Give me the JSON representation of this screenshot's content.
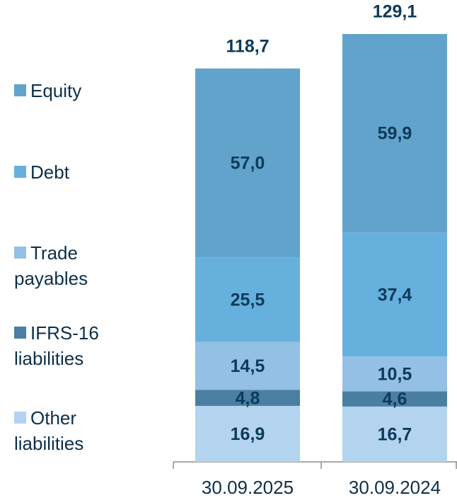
{
  "chart_data": {
    "type": "stacked-bar",
    "categories": [
      "30.09.2025",
      "30.09.2024"
    ],
    "series": [
      {
        "name": "Other liabilities",
        "color": "#b3d3ee",
        "values": [
          16.9,
          16.7
        ],
        "value_labels": [
          "16,9",
          "16,7"
        ]
      },
      {
        "name": "IFRS-16 liabilities",
        "color": "#4a7fa1",
        "values": [
          4.8,
          4.6
        ],
        "value_labels": [
          "4,8",
          "4,6"
        ]
      },
      {
        "name": "Trade payables",
        "color": "#93c0e4",
        "values": [
          14.5,
          10.5
        ],
        "value_labels": [
          "14,5",
          "10,5"
        ]
      },
      {
        "name": "Debt",
        "color": "#66b0de",
        "values": [
          25.5,
          37.4
        ],
        "value_labels": [
          "25,5",
          "37,4"
        ]
      },
      {
        "name": "Equity",
        "color": "#62a3cc",
        "values": [
          57.0,
          59.9
        ],
        "value_labels": [
          "57,0",
          "59,9"
        ]
      }
    ],
    "totals": [
      118.7,
      129.1
    ],
    "total_labels": [
      "118,7",
      "129,1"
    ]
  }
}
